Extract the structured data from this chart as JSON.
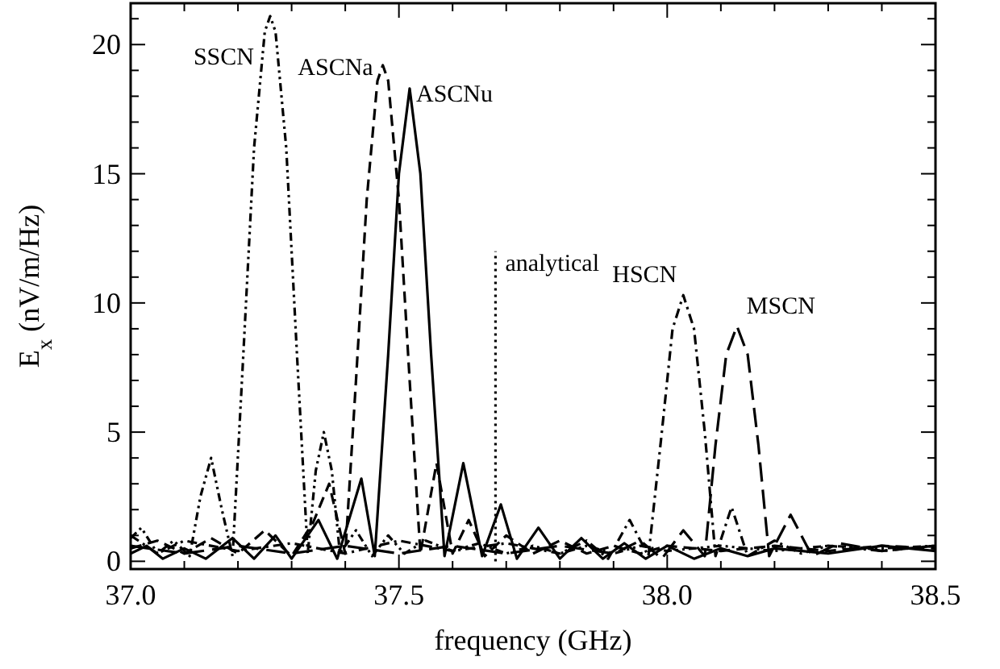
{
  "chart_data": {
    "type": "line",
    "xlabel": "frequency (GHz)",
    "ylabel": "E$_{x}$ (nV/m/Hz)",
    "xlim": [
      37.0,
      38.5
    ],
    "ylim": [
      -0.3,
      21.6
    ],
    "xticks": [
      {
        "value": 37,
        "label": "37.0"
      },
      {
        "value": 37.1,
        "label": null
      },
      {
        "value": 37.2,
        "label": null
      },
      {
        "value": 37.3,
        "label": null
      },
      {
        "value": 37.4,
        "label": null
      },
      37.5,
      {
        "value": 37.6,
        "label": null
      },
      {
        "value": 37.7,
        "label": null
      },
      {
        "value": 37.8,
        "label": null
      },
      {
        "value": 37.9,
        "label": null
      },
      {
        "value": 38,
        "label": "38.0"
      },
      {
        "value": 38.1,
        "label": null
      },
      {
        "value": 38.2,
        "label": null
      },
      {
        "value": 38.3,
        "label": null
      },
      {
        "value": 38.4,
        "label": null
      },
      38.5
    ],
    "yticks": [
      0,
      {
        "value": 1,
        "label": null
      },
      {
        "value": 2,
        "label": null
      },
      {
        "value": 3,
        "label": null
      },
      {
        "value": 4,
        "label": null
      },
      5,
      {
        "value": 6,
        "label": null
      },
      {
        "value": 7,
        "label": null
      },
      {
        "value": 8,
        "label": null
      },
      {
        "value": 9,
        "label": null
      },
      10,
      {
        "value": 11,
        "label": null
      },
      {
        "value": 12,
        "label": null
      },
      {
        "value": 13,
        "label": null
      },
      {
        "value": 14,
        "label": null
      },
      15,
      {
        "value": 16,
        "label": null
      },
      {
        "value": 17,
        "label": null
      },
      {
        "value": 18,
        "label": null
      },
      {
        "value": 19,
        "label": null
      },
      20,
      {
        "value": 21,
        "label": null
      }
    ],
    "grid": false,
    "series": [
      {
        "name": "SSCN",
        "color": "#000000",
        "line_style": "dashdotdot",
        "x": [
          37.0,
          37.02,
          37.05,
          37.08,
          37.11,
          37.13,
          37.15,
          37.17,
          37.19,
          37.21,
          37.23,
          37.25,
          37.26,
          37.27,
          37.29,
          37.31,
          37.33,
          37.345,
          37.36,
          37.375,
          37.39,
          37.42,
          37.45,
          37.48,
          37.51,
          37.55,
          37.6,
          37.65,
          37.7,
          37.75,
          37.8,
          37.85,
          37.9,
          37.95,
          38.0,
          38.1,
          38.2,
          38.3,
          38.4,
          38.5
        ],
        "values": [
          0.9,
          1.3,
          0.3,
          0.8,
          0.2,
          2.5,
          4.0,
          2.0,
          0.2,
          8,
          16,
          20.5,
          21.1,
          20.5,
          16,
          8,
          0.3,
          3.5,
          5.0,
          3.5,
          0.3,
          1.2,
          0.2,
          1.0,
          0.3,
          0.8,
          0.4,
          0.7,
          0.3,
          0.6,
          0.3,
          0.6,
          0.3,
          0.6,
          0.4,
          0.6,
          0.4,
          0.6,
          0.5,
          0.6
        ]
      },
      {
        "name": "ASCNa",
        "color": "#000000",
        "line_style": "dashed",
        "x": [
          37.0,
          37.05,
          37.1,
          37.15,
          37.2,
          37.25,
          37.3,
          37.34,
          37.37,
          37.4,
          37.42,
          37.44,
          37.46,
          37.47,
          37.48,
          37.5,
          37.52,
          37.54,
          37.57,
          37.6,
          37.63,
          37.66,
          37.7,
          37.75,
          37.8,
          37.85,
          37.9,
          37.95,
          38.0,
          38.1,
          38.2,
          38.3,
          38.4,
          38.5
        ],
        "values": [
          0.5,
          0.8,
          0.3,
          0.9,
          0.3,
          1.2,
          0.2,
          1.5,
          3.0,
          0.3,
          7,
          14,
          18.6,
          19.2,
          18.6,
          14,
          7,
          0.3,
          3.8,
          0.3,
          1.6,
          0.2,
          1.0,
          0.3,
          0.8,
          0.3,
          0.6,
          0.3,
          0.6,
          0.4,
          0.6,
          0.4,
          0.6,
          0.5
        ]
      },
      {
        "name": "ASCNu",
        "color": "#000000",
        "line_style": "solid",
        "x": [
          37.0,
          37.03,
          37.06,
          37.1,
          37.14,
          37.19,
          37.23,
          37.27,
          37.3,
          37.35,
          37.385,
          37.43,
          37.455,
          37.48,
          37.5,
          37.52,
          37.54,
          37.56,
          37.585,
          37.62,
          37.655,
          37.69,
          37.72,
          37.76,
          37.8,
          37.84,
          37.88,
          37.92,
          37.96,
          38.0,
          38.05,
          38.1,
          38.15,
          38.2,
          38.3,
          38.4,
          38.5
        ],
        "values": [
          0.3,
          0.6,
          0.1,
          0.5,
          0.1,
          0.9,
          0.1,
          1.0,
          0.1,
          1.6,
          0.1,
          3.2,
          0.2,
          8,
          15,
          18.3,
          15,
          8,
          0.2,
          3.8,
          0.2,
          2.2,
          0.1,
          1.3,
          0.1,
          0.9,
          0.1,
          0.7,
          0.1,
          0.6,
          0.1,
          0.5,
          0.2,
          0.5,
          0.3,
          0.6,
          0.4
        ]
      },
      {
        "name": "HSCN",
        "color": "#000000",
        "line_style": "dashdot",
        "x": [
          37.0,
          37.05,
          37.1,
          37.2,
          37.3,
          37.4,
          37.5,
          37.6,
          37.7,
          37.8,
          37.85,
          37.89,
          37.93,
          37.965,
          37.99,
          38.01,
          38.03,
          38.05,
          38.07,
          38.09,
          38.12,
          38.15,
          38.2,
          38.25,
          38.3,
          38.4,
          38.5
        ],
        "values": [
          1.0,
          0.3,
          0.8,
          0.4,
          0.7,
          0.3,
          0.8,
          0.4,
          0.7,
          0.3,
          0.8,
          0.1,
          1.6,
          0.2,
          5,
          9,
          10.3,
          9,
          5,
          0.2,
          2.1,
          0.2,
          0.8,
          0.3,
          0.6,
          0.4,
          0.6
        ]
      },
      {
        "name": "MSCN",
        "color": "#000000",
        "line_style": "longdash",
        "x": [
          37.0,
          37.1,
          37.2,
          37.3,
          37.4,
          37.5,
          37.6,
          37.7,
          37.8,
          37.9,
          37.95,
          37.99,
          38.03,
          38.07,
          38.09,
          38.11,
          38.13,
          38.15,
          38.17,
          38.19,
          38.23,
          38.27,
          38.32,
          38.4,
          38.5
        ],
        "values": [
          0.6,
          0.3,
          0.6,
          0.3,
          0.6,
          0.3,
          0.6,
          0.3,
          0.6,
          0.3,
          0.8,
          0.1,
          1.2,
          0.2,
          4.5,
          8,
          9.1,
          8,
          4.5,
          0.2,
          1.8,
          0.2,
          0.7,
          0.4,
          0.6
        ]
      },
      {
        "name": "analytical",
        "color": "#000000",
        "line_style": "dotted",
        "x": [
          37.68,
          37.68
        ],
        "values": [
          0,
          12
        ]
      }
    ]
  }
}
